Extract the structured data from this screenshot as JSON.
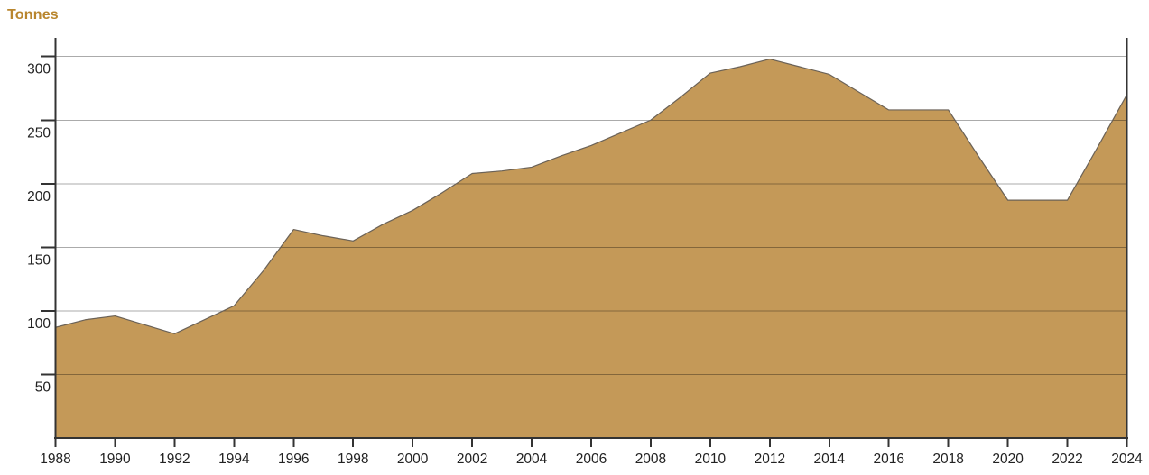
{
  "chart_data": {
    "type": "area",
    "title": "Tonnes",
    "ylabel": "Tonnes",
    "xlabel": "",
    "x": [
      1988,
      1989,
      1990,
      1991,
      1992,
      1993,
      1994,
      1995,
      1996,
      1997,
      1998,
      1999,
      2000,
      2001,
      2002,
      2003,
      2004,
      2005,
      2006,
      2007,
      2008,
      2009,
      2010,
      2011,
      2012,
      2013,
      2014,
      2015,
      2016,
      2017,
      2018,
      2019,
      2020,
      2021,
      2022,
      2023,
      2024
    ],
    "values": [
      87,
      93,
      96,
      89,
      82,
      93,
      104,
      132,
      164,
      159,
      155,
      168,
      179,
      193,
      208,
      210,
      213,
      222,
      230,
      240,
      250,
      268,
      287,
      292,
      298,
      292,
      286,
      272,
      258,
      258,
      258,
      222,
      187,
      187,
      187,
      228,
      270
    ],
    "ylim": [
      0,
      310
    ],
    "yticks": [
      50,
      100,
      150,
      200,
      250,
      300
    ],
    "xticks": [
      1988,
      1990,
      1992,
      1994,
      1996,
      1998,
      2000,
      2002,
      2004,
      2006,
      2008,
      2010,
      2012,
      2014,
      2016,
      2018,
      2020,
      2022,
      2024
    ],
    "grid": true,
    "legend_position": "none",
    "colors": {
      "title": "#B9862E",
      "fill": "#C49958",
      "line": "#6B6257",
      "axis": "#333333",
      "grid": "rgba(0,0,0,0.33)",
      "text": "#222222"
    }
  }
}
